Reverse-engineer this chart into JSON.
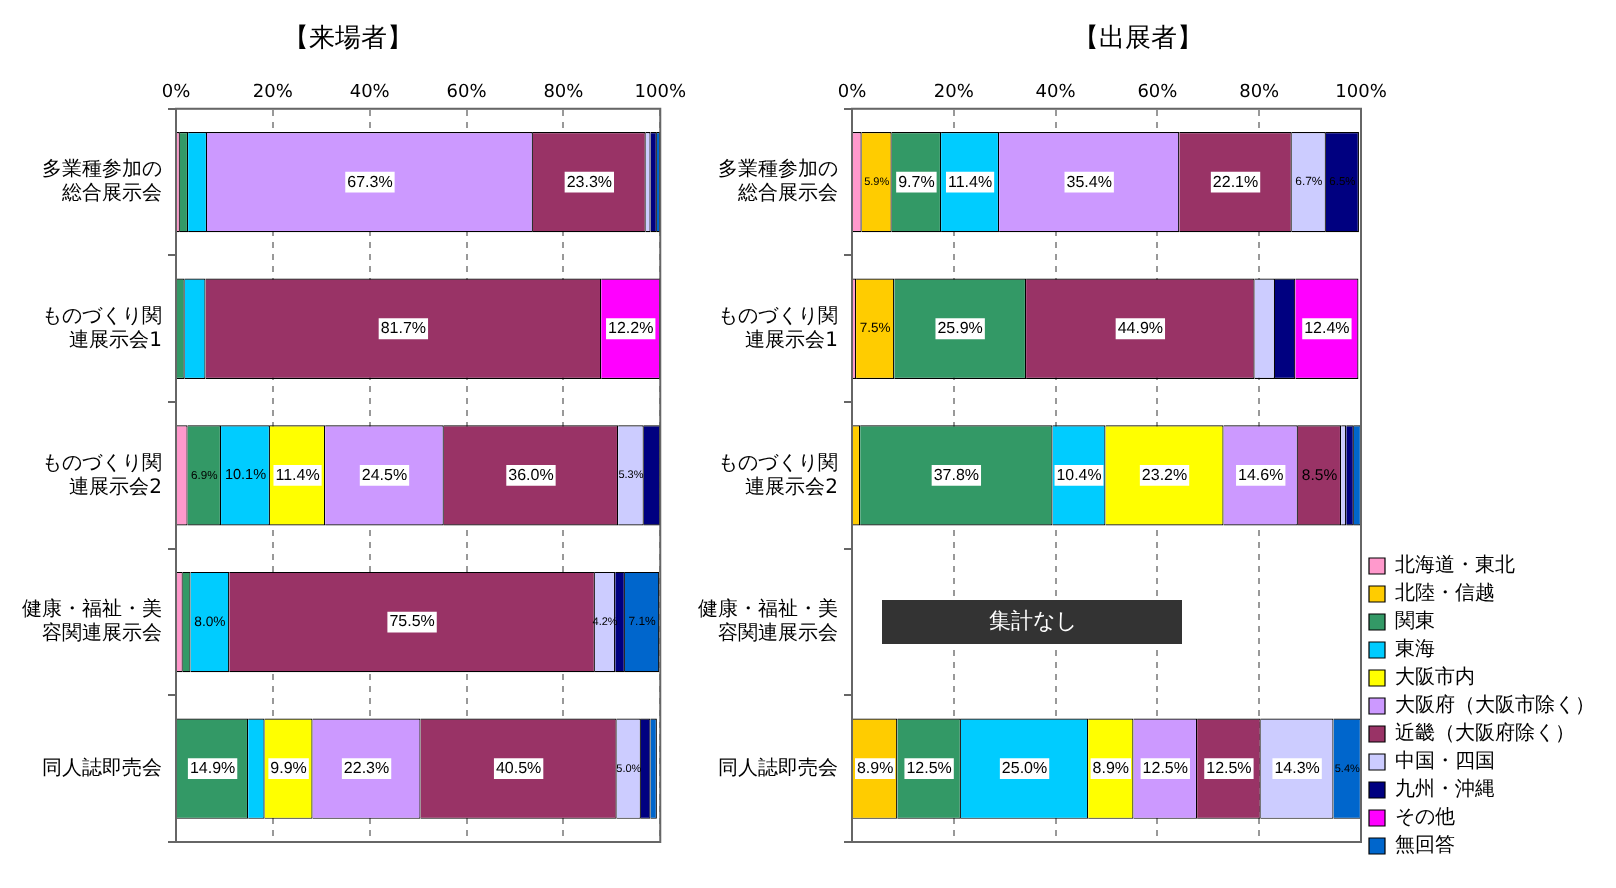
{
  "chart_data": [
    {
      "type": "bar",
      "orientation": "horizontal",
      "stacked": true,
      "title": "【来場者】",
      "categories": [
        "多業種参加の総合展示会",
        "ものづくり関連展示会1",
        "ものづくり関連展示会2",
        "健康・福祉・美容関連展示会",
        "同人誌即売会"
      ],
      "xlim": [
        0,
        100
      ],
      "xticks": [
        {
          "value": 0,
          "label": "0%"
        },
        {
          "value": 20,
          "label": "20%"
        },
        {
          "value": 40,
          "label": "40%"
        },
        {
          "value": 60,
          "label": "60%"
        },
        {
          "value": 80,
          "label": "80%"
        },
        {
          "value": 100,
          "label": "100%"
        }
      ],
      "grid": "x",
      "series": [
        {
          "color": "#ff99cc",
          "values": [
            0.8,
            null,
            2.4,
            1.4,
            null
          ]
        },
        {
          "color": "#339966",
          "values": [
            1.7,
            1.8,
            6.9,
            1.6,
            14.9
          ],
          "value_labels": [
            null,
            null,
            "6.9%",
            null,
            "14.9%"
          ]
        },
        {
          "color": "#00ccff",
          "values": [
            3.9,
            4.3,
            10.1,
            8.0,
            3.4
          ],
          "value_labels": [
            null,
            null,
            "10.1%",
            "8.0%",
            null
          ]
        },
        {
          "color": "#ffff00",
          "values": [
            null,
            null,
            11.4,
            null,
            9.9
          ],
          "value_labels": [
            null,
            null,
            "11.4%",
            null,
            "9.9%"
          ]
        },
        {
          "color": "#cc99ff",
          "values": [
            67.3,
            null,
            24.5,
            null,
            22.3
          ],
          "value_labels": [
            "67.3%",
            null,
            "24.5%",
            null,
            "22.3%"
          ]
        },
        {
          "color": "#993366",
          "values": [
            23.3,
            81.7,
            36.0,
            75.5,
            40.5
          ],
          "value_labels": [
            "23.3%",
            "81.7%",
            "36.0%",
            "75.5%",
            "40.5%"
          ]
        },
        {
          "color": "#ccccff",
          "values": [
            1.0,
            null,
            5.3,
            4.2,
            5.0
          ],
          "value_labels": [
            null,
            null,
            "5.3%",
            "4.2%",
            "5.0%"
          ]
        },
        {
          "color": "#000080",
          "values": [
            1.3,
            null,
            3.4,
            2.0,
            2.0
          ]
        },
        {
          "color": "#ff00ff",
          "values": [
            null,
            12.2,
            null,
            null,
            null
          ],
          "value_labels": [
            null,
            "12.2%",
            null,
            null,
            null
          ]
        },
        {
          "color": "#0066cc",
          "values": [
            0.7,
            null,
            null,
            7.1,
            1.3
          ],
          "value_labels": [
            null,
            null,
            null,
            "7.1%",
            null
          ]
        }
      ]
    },
    {
      "type": "bar",
      "orientation": "horizontal",
      "stacked": true,
      "title": "【出展者】",
      "categories": [
        "多業種参加の総合展示会",
        "ものづくり関連展示会1",
        "ものづくり関連展示会2",
        "健康・福祉・美容関連展示会",
        "同人誌即売会"
      ],
      "xlim": [
        0,
        100
      ],
      "xticks": [
        {
          "value": 0,
          "label": "0%"
        },
        {
          "value": 20,
          "label": "20%"
        },
        {
          "value": 40,
          "label": "40%"
        },
        {
          "value": 60,
          "label": "60%"
        },
        {
          "value": 80,
          "label": "80%"
        },
        {
          "value": 100,
          "label": "100%"
        }
      ],
      "grid": "x",
      "legend": "bottom right",
      "annotations": [
        "集計なし"
      ],
      "series": [
        {
          "name": "北海道・東北",
          "color": "#ff99cc",
          "values": [
            1.9,
            0.8,
            null,
            null,
            null
          ]
        },
        {
          "name": "北陸・信越",
          "color": "#ffcc00",
          "values": [
            5.9,
            7.5,
            1.6,
            null,
            8.9
          ],
          "value_labels": [
            "5.9%",
            "7.5%",
            null,
            null,
            "8.9%"
          ]
        },
        {
          "name": "関東",
          "color": "#339966",
          "values": [
            9.7,
            25.9,
            37.8,
            null,
            12.5
          ],
          "value_labels": [
            "9.7%",
            "25.9%",
            "37.8%",
            null,
            "12.5%"
          ]
        },
        {
          "name": "東海",
          "color": "#00ccff",
          "values": [
            11.4,
            null,
            10.4,
            null,
            25.0
          ],
          "value_labels": [
            "11.4%",
            null,
            "10.4%",
            null,
            "25.0%"
          ]
        },
        {
          "name": "大阪市内",
          "color": "#ffff00",
          "values": [
            null,
            null,
            23.2,
            null,
            8.9
          ],
          "value_labels": [
            null,
            null,
            "23.2%",
            null,
            "8.9%"
          ]
        },
        {
          "name": "大阪府（大阪市除く）",
          "color": "#cc99ff",
          "values": [
            35.4,
            null,
            14.6,
            null,
            12.5
          ],
          "value_labels": [
            "35.4%",
            null,
            "14.6%",
            null,
            "12.5%"
          ]
        },
        {
          "name": "近畿（大阪府除く）",
          "color": "#993366",
          "values": [
            22.1,
            44.9,
            8.5,
            null,
            12.5
          ],
          "value_labels": [
            "22.1%",
            "44.9%",
            "8.5%",
            null,
            "12.5%"
          ]
        },
        {
          "name": "中国・四国",
          "color": "#ccccff",
          "values": [
            6.7,
            4.0,
            1.0,
            null,
            14.3
          ],
          "value_labels": [
            "6.7%",
            null,
            null,
            null,
            "14.3%"
          ]
        },
        {
          "name": "九州・沖縄",
          "color": "#000080",
          "values": [
            6.5,
            4.0,
            1.5,
            null,
            null
          ],
          "value_labels": [
            "6.5%",
            null,
            null,
            null,
            null
          ]
        },
        {
          "name": "その他",
          "color": "#ff00ff",
          "values": [
            null,
            12.4,
            null,
            null,
            null
          ],
          "value_labels": [
            null,
            "12.4%",
            null,
            null,
            null
          ]
        },
        {
          "name": "無回答",
          "color": "#0066cc",
          "values": [
            null,
            null,
            1.4,
            null,
            5.4
          ],
          "value_labels": [
            null,
            null,
            null,
            null,
            "5.4%"
          ]
        }
      ]
    }
  ]
}
